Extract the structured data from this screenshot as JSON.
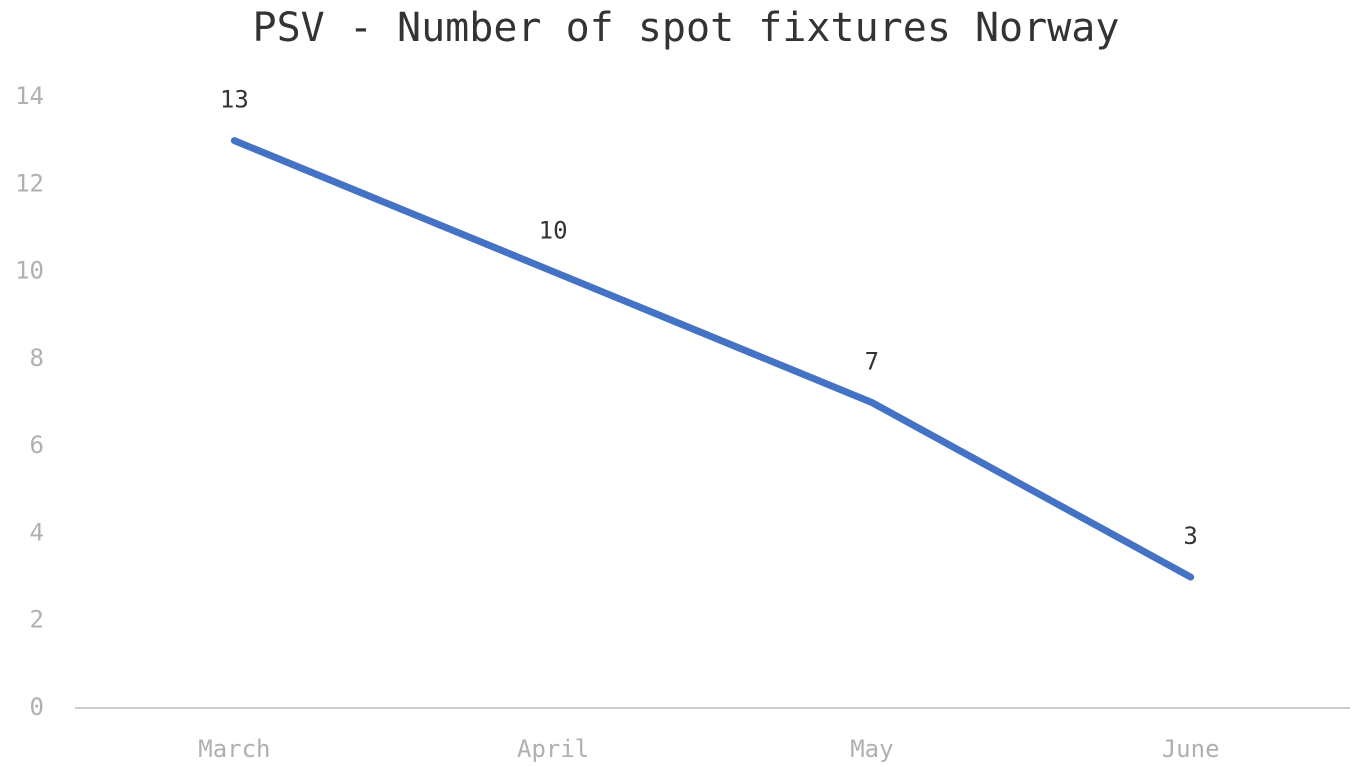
{
  "chart_data": {
    "type": "line",
    "title": "PSV - Number of spot fixtures Norway",
    "categories": [
      "March",
      "April",
      "May",
      "June"
    ],
    "series": [
      {
        "name": "Number of spot fixtures",
        "color": "#4472c4",
        "values": [
          13,
          10,
          7,
          3
        ]
      }
    ],
    "ylim": [
      0,
      14
    ],
    "yticks": [
      0,
      2,
      4,
      6,
      8,
      10,
      12,
      14
    ]
  }
}
